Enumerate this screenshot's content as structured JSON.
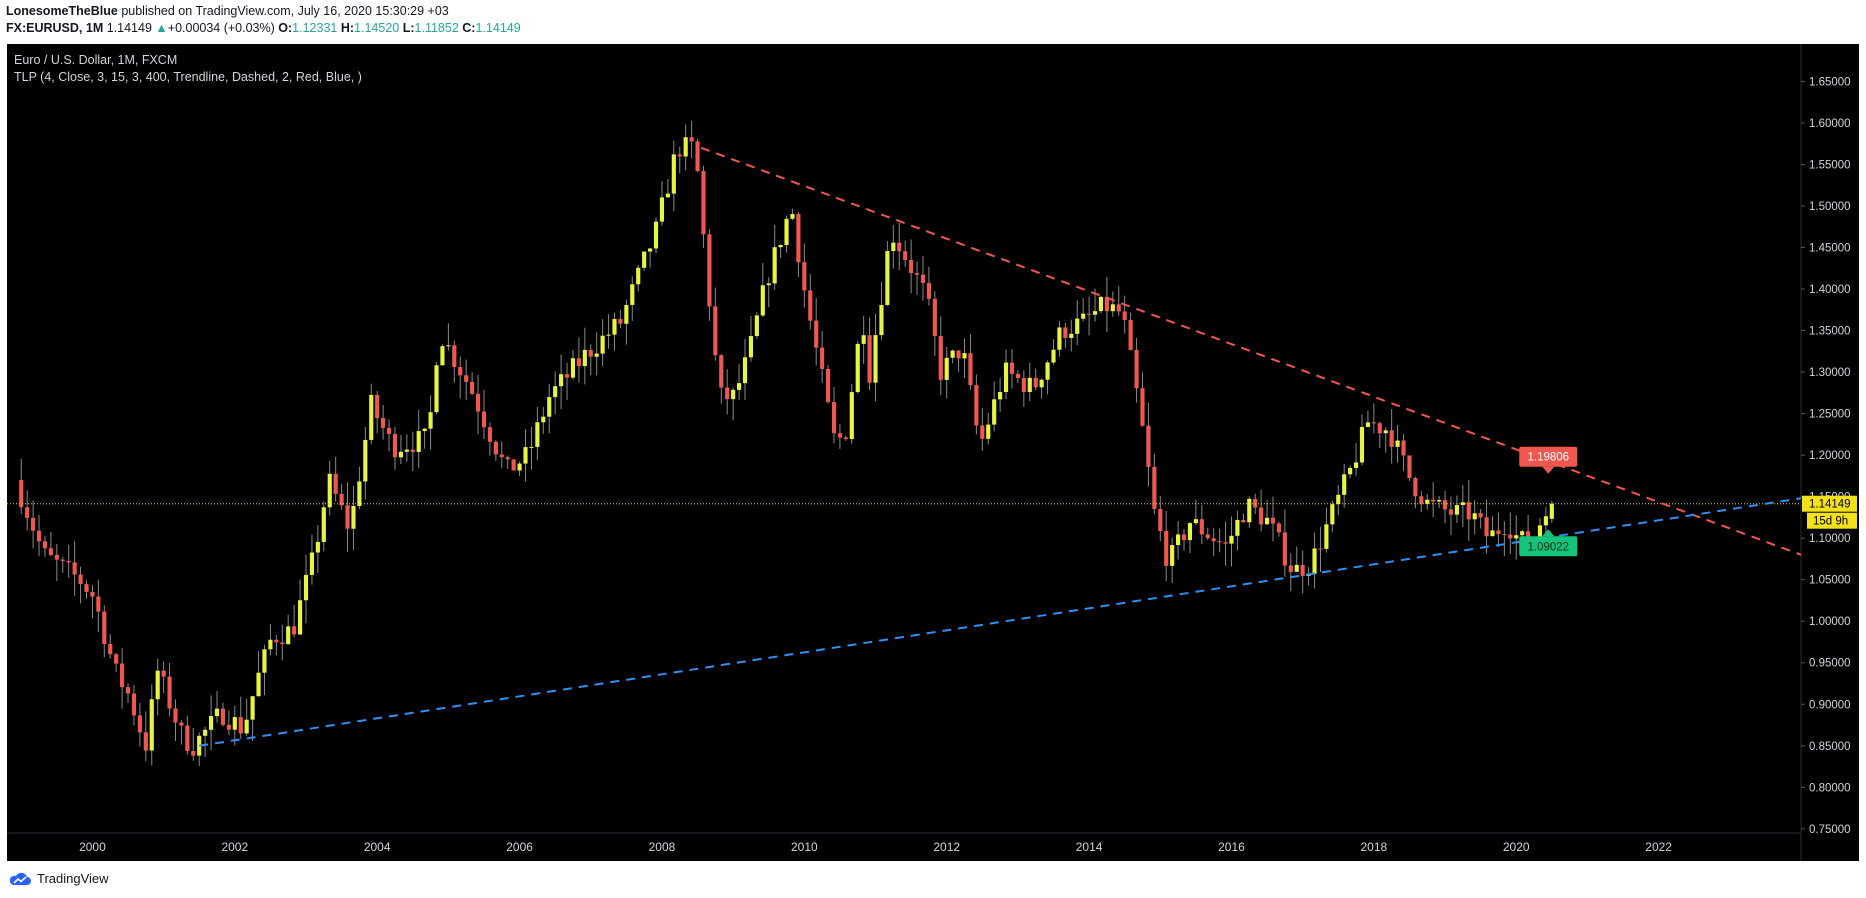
{
  "header": {
    "author": "LonesomeTheBlue",
    "published": "published on TradingView.com, July 16, 2020 15:30:29 +03",
    "symbol": "FX:EURUSD, 1M",
    "last": "1.14149",
    "arrow": "▲",
    "change": "+0.00034 (+0.03%)",
    "o_label": "O:",
    "o": "1.12331",
    "h_label": "H:",
    "h": "1.14520",
    "l_label": "L:",
    "l": "1.11852",
    "c_label": "C:",
    "c": "1.14149"
  },
  "footer": {
    "brand": "TradingView",
    "icon": "tradingview-cloud-icon"
  },
  "colors": {
    "bg": "#000000",
    "up": "#e6f542",
    "down": "#f0574f",
    "red_line": "#f0574f",
    "blue_line": "#2f8ff2",
    "price_line": "#f5d90a",
    "text": "#d1d4dc",
    "red_label": "#f0574f",
    "green_label": "#14c47a"
  },
  "chart_data": {
    "type": "candlestick",
    "title": "Euro / U.S. Dollar, 1M, FXCM",
    "indicator": "TLP (4, Close, 3, 15, 3, 400, Trendline, Dashed, 2, Red, Blue, )",
    "xlim": [
      1998.8,
      2024.0
    ],
    "ylim": [
      0.745,
      1.695
    ],
    "x_ticks": [
      "2000",
      "2002",
      "2004",
      "2006",
      "2008",
      "2010",
      "2012",
      "2014",
      "2016",
      "2018",
      "2020",
      "2022"
    ],
    "y_ticks": [
      "0.75000",
      "0.80000",
      "0.85000",
      "0.90000",
      "0.95000",
      "1.00000",
      "1.05000",
      "1.10000",
      "1.15000",
      "1.20000",
      "1.25000",
      "1.30000",
      "1.35000",
      "1.40000",
      "1.45000",
      "1.50000",
      "1.55000",
      "1.60000",
      "1.65000"
    ],
    "anchors": [
      [
        1999.0,
        1.17
      ],
      [
        1999.4,
        1.08
      ],
      [
        1999.9,
        1.05
      ],
      [
        2000.1,
        1.03
      ],
      [
        2000.4,
        0.94
      ],
      [
        2000.6,
        0.91
      ],
      [
        2000.83,
        0.85
      ],
      [
        2001.0,
        0.94
      ],
      [
        2001.35,
        0.86
      ],
      [
        2001.5,
        0.85
      ],
      [
        2001.9,
        0.89
      ],
      [
        2002.2,
        0.87
      ],
      [
        2002.4,
        0.93
      ],
      [
        2002.6,
        0.98
      ],
      [
        2002.9,
        0.99
      ],
      [
        2003.2,
        1.08
      ],
      [
        2003.4,
        1.17
      ],
      [
        2003.7,
        1.11
      ],
      [
        2004.0,
        1.26
      ],
      [
        2004.3,
        1.21
      ],
      [
        2004.8,
        1.22
      ],
      [
        2004.95,
        1.35
      ],
      [
        2005.4,
        1.28
      ],
      [
        2005.9,
        1.18
      ],
      [
        2006.2,
        1.2
      ],
      [
        2006.5,
        1.27
      ],
      [
        2007.0,
        1.32
      ],
      [
        2007.5,
        1.36
      ],
      [
        2008.0,
        1.47
      ],
      [
        2008.3,
        1.57
      ],
      [
        2008.55,
        1.57
      ],
      [
        2008.8,
        1.34
      ],
      [
        2008.9,
        1.27
      ],
      [
        2009.1,
        1.27
      ],
      [
        2009.3,
        1.32
      ],
      [
        2009.55,
        1.41
      ],
      [
        2009.9,
        1.5
      ],
      [
        2010.1,
        1.39
      ],
      [
        2010.5,
        1.22
      ],
      [
        2010.65,
        1.22
      ],
      [
        2010.9,
        1.37
      ],
      [
        2011.0,
        1.3
      ],
      [
        2011.3,
        1.47
      ],
      [
        2011.5,
        1.44
      ],
      [
        2011.8,
        1.39
      ],
      [
        2012.0,
        1.3
      ],
      [
        2012.3,
        1.33
      ],
      [
        2012.55,
        1.21
      ],
      [
        2012.9,
        1.3
      ],
      [
        2013.3,
        1.28
      ],
      [
        2013.7,
        1.35
      ],
      [
        2014.0,
        1.36
      ],
      [
        2014.3,
        1.38
      ],
      [
        2014.55,
        1.37
      ],
      [
        2014.8,
        1.25
      ],
      [
        2015.0,
        1.13
      ],
      [
        2015.2,
        1.07
      ],
      [
        2015.5,
        1.12
      ],
      [
        2016.0,
        1.09
      ],
      [
        2016.3,
        1.14
      ],
      [
        2016.6,
        1.12
      ],
      [
        2016.95,
        1.06
      ],
      [
        2017.2,
        1.07
      ],
      [
        2017.45,
        1.12
      ],
      [
        2017.75,
        1.18
      ],
      [
        2018.0,
        1.24
      ],
      [
        2018.3,
        1.23
      ],
      [
        2018.6,
        1.17
      ],
      [
        2018.85,
        1.14
      ],
      [
        2019.2,
        1.13
      ],
      [
        2019.45,
        1.13
      ],
      [
        2019.7,
        1.1
      ],
      [
        2019.95,
        1.12
      ],
      [
        2020.1,
        1.1
      ],
      [
        2020.3,
        1.09
      ],
      [
        2020.5,
        1.14
      ]
    ],
    "trendline_resistance": {
      "color": "red",
      "style": "dashed",
      "from": [
        2008.55,
        1.57
      ],
      "to": [
        2024.0,
        1.08
      ]
    },
    "trendline_support": {
      "color": "blue",
      "style": "dashed",
      "from": [
        2001.5,
        0.85
      ],
      "to": [
        2024.0,
        1.148
      ]
    },
    "price_line": {
      "value": 1.14149,
      "color": "yellow",
      "style": "dotted"
    },
    "labels": [
      {
        "text": "1.19806",
        "kind": "resistance-target",
        "x": 2020.45,
        "y": 1.19806
      },
      {
        "text": "1.09022",
        "kind": "support-target",
        "x": 2020.45,
        "y": 1.09022
      }
    ],
    "axis_badges": {
      "last_price": "1.14149",
      "countdown": "15d 9h"
    }
  }
}
